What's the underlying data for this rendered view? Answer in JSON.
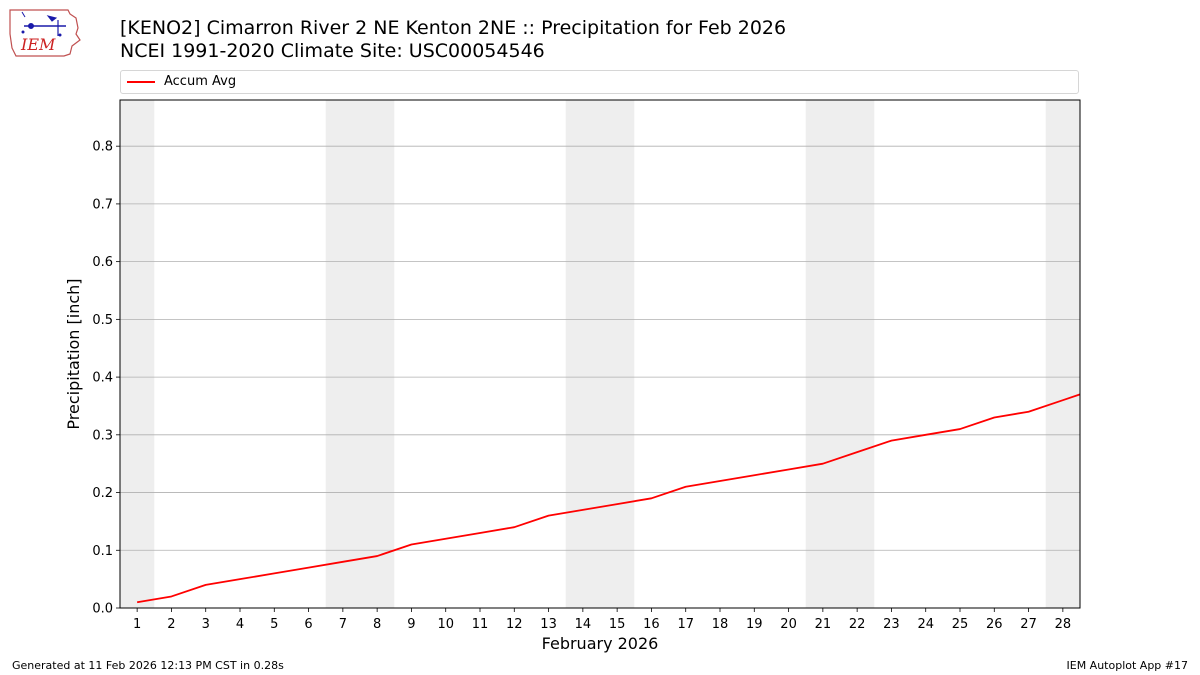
{
  "header": {
    "title_line1": "[KENO2] Cimarron River 2 NE Kenton 2NE :: Precipitation for Feb 2026",
    "title_line2": "NCEI 1991-2020 Climate Site: USC00054546"
  },
  "logo": {
    "text": "IEM",
    "icon": "iem-iowa-logo"
  },
  "legend": {
    "placement": "top",
    "entries": [
      {
        "label": "Accum Avg",
        "color": "#ff0000"
      }
    ]
  },
  "footer": {
    "left": "Generated at 11 Feb 2026 12:13 PM CST in 0.28s",
    "right": "IEM Autoplot App #17"
  },
  "chart_data": {
    "type": "line",
    "title": "[KENO2] Cimarron River 2 NE Kenton 2NE :: Precipitation for Feb 2026",
    "subtitle": "NCEI 1991-2020 Climate Site: USC00054546",
    "xlabel": "February 2026",
    "ylabel": "Precipitation [inch]",
    "xlim": [
      0.5,
      28.5
    ],
    "ylim": [
      0,
      0.88
    ],
    "x_ticks": [
      1,
      2,
      3,
      4,
      5,
      6,
      7,
      8,
      9,
      10,
      11,
      12,
      13,
      14,
      15,
      16,
      17,
      18,
      19,
      20,
      21,
      22,
      23,
      24,
      25,
      26,
      27,
      28
    ],
    "y_ticks": [
      0.0,
      0.1,
      0.2,
      0.3,
      0.4,
      0.5,
      0.6,
      0.7,
      0.8
    ],
    "y_tick_labels": [
      "0.0",
      "0.1",
      "0.2",
      "0.3",
      "0.4",
      "0.5",
      "0.6",
      "0.7",
      "0.8"
    ],
    "grid": {
      "y": true,
      "x": false,
      "color": "#b0b0b0"
    },
    "weekend_shading": {
      "color": "#eeeeee",
      "days": [
        1,
        7,
        8,
        14,
        15,
        21,
        22,
        28
      ]
    },
    "series": [
      {
        "name": "Accum Avg",
        "color": "#ff0000",
        "x": [
          1,
          2,
          3,
          4,
          5,
          6,
          7,
          8,
          9,
          10,
          11,
          12,
          13,
          14,
          15,
          16,
          17,
          18,
          19,
          20,
          21,
          22,
          23,
          24,
          25,
          26,
          27,
          28,
          28.5
        ],
        "values": [
          0.01,
          0.02,
          0.04,
          0.05,
          0.06,
          0.07,
          0.08,
          0.09,
          0.11,
          0.12,
          0.13,
          0.14,
          0.16,
          0.17,
          0.18,
          0.19,
          0.21,
          0.22,
          0.23,
          0.24,
          0.25,
          0.27,
          0.29,
          0.3,
          0.31,
          0.33,
          0.34,
          0.36,
          0.37
        ]
      }
    ]
  }
}
